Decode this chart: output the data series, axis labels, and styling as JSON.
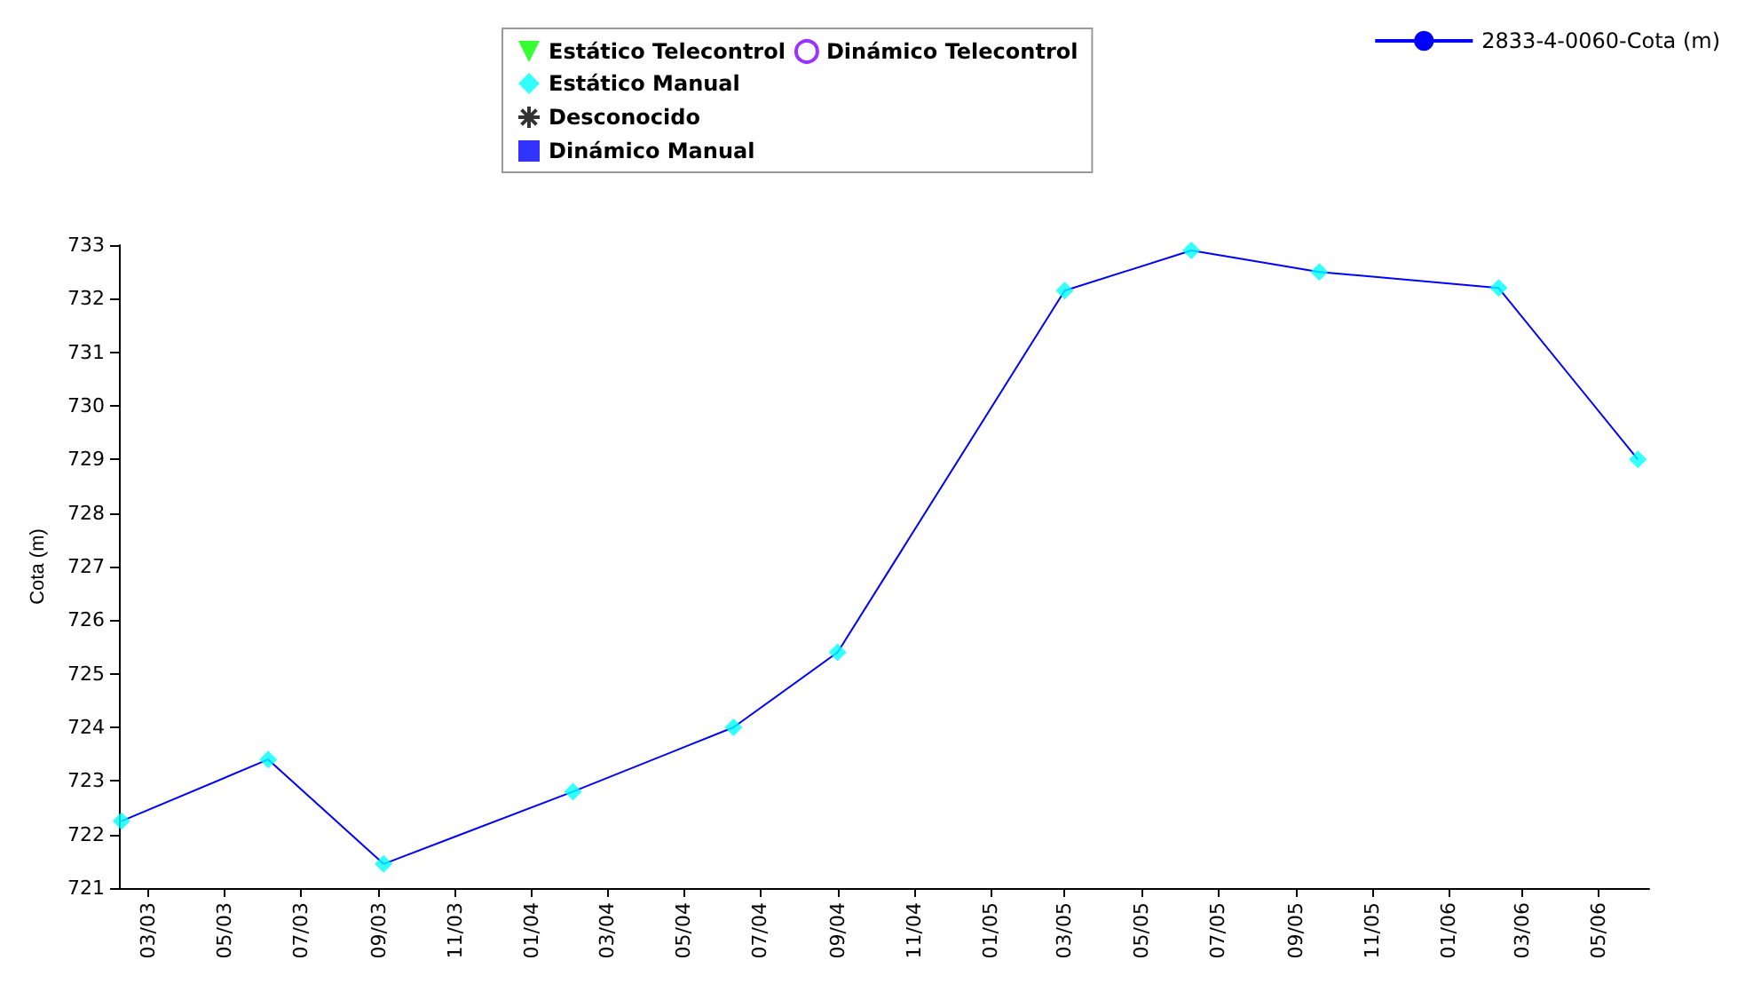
{
  "chart_data": {
    "type": "line",
    "ylabel": "Cota (m)",
    "x": [
      "2003-02-08",
      "2003-06-05",
      "2003-09-05",
      "2004-02-03",
      "2004-06-10",
      "2004-09-01",
      "2005-03-01",
      "2005-06-10",
      "2005-09-20",
      "2006-02-10",
      "2006-06-01"
    ],
    "xlim": [
      "2003-02-06",
      "2006-06-10"
    ],
    "xticks": [
      {
        "value": "2003-03",
        "label": "03/03"
      },
      {
        "value": "2003-05",
        "label": "05/03"
      },
      {
        "value": "2003-07",
        "label": "07/03"
      },
      {
        "value": "2003-09",
        "label": "09/03"
      },
      {
        "value": "2003-11",
        "label": "11/03"
      },
      {
        "value": "2004-01",
        "label": "01/04"
      },
      {
        "value": "2004-03",
        "label": "03/04"
      },
      {
        "value": "2004-05",
        "label": "05/04"
      },
      {
        "value": "2004-07",
        "label": "07/04"
      },
      {
        "value": "2004-09",
        "label": "09/04"
      },
      {
        "value": "2004-11",
        "label": "11/04"
      },
      {
        "value": "2005-01",
        "label": "01/05"
      },
      {
        "value": "2005-03",
        "label": "03/05"
      },
      {
        "value": "2005-05",
        "label": "05/05"
      },
      {
        "value": "2005-07",
        "label": "07/05"
      },
      {
        "value": "2005-09",
        "label": "09/05"
      },
      {
        "value": "2005-11",
        "label": "11/05"
      },
      {
        "value": "2006-01",
        "label": "01/06"
      },
      {
        "value": "2006-03",
        "label": "03/06"
      },
      {
        "value": "2006-05",
        "label": "05/06"
      }
    ],
    "ylim": [
      721,
      733
    ],
    "yticks": [
      721,
      722,
      723,
      724,
      725,
      726,
      727,
      728,
      729,
      730,
      731,
      732,
      733
    ],
    "grid": false,
    "legend": "top",
    "series": [
      {
        "name": "2833-4-0060-Cota (m)",
        "color": "#0000ff",
        "marker": "none",
        "line_style": "solid",
        "values": [
          722.25,
          723.4,
          721.45,
          722.8,
          724.0,
          725.4,
          732.15,
          732.9,
          732.5,
          732.2,
          729.0
        ]
      },
      {
        "name": "Estático Telecontrol",
        "type": "scatter",
        "color": "#00ff00",
        "marker": "triangle",
        "values": [
          null,
          null,
          null,
          null,
          null,
          null,
          null,
          null,
          null,
          null,
          null
        ]
      },
      {
        "name": "Estático Manual",
        "type": "scatter",
        "color": "#00ffff",
        "marker": "diamond",
        "values": [
          722.25,
          723.4,
          721.45,
          722.8,
          724.0,
          725.4,
          732.15,
          732.9,
          732.5,
          732.2,
          729.0
        ]
      },
      {
        "name": "Desconocido",
        "type": "scatter",
        "color": "#000000",
        "marker": "star",
        "values": [
          null,
          null,
          null,
          null,
          null,
          null,
          null,
          null,
          null,
          null,
          null
        ]
      },
      {
        "name": "Dinámico Manual",
        "type": "scatter",
        "color": "#0000ff",
        "marker": "square",
        "values": [
          null,
          null,
          null,
          null,
          null,
          null,
          null,
          null,
          null,
          null,
          null
        ]
      },
      {
        "name": "Dinámico Telecontrol",
        "type": "scatter",
        "color": "#8000ff",
        "marker": "circle",
        "values": [
          null,
          null,
          null,
          null,
          null,
          null,
          null,
          null,
          null,
          null,
          null
        ]
      }
    ]
  }
}
